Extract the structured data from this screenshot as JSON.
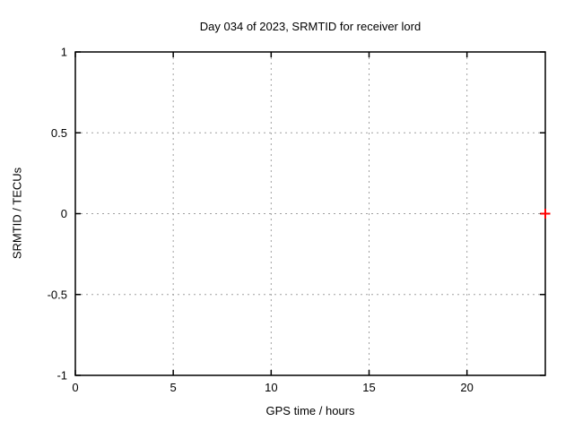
{
  "chart_data": {
    "type": "scatter",
    "title": "Day 034 of 2023, SRMTID for receiver lord",
    "xlabel": "GPS time / hours",
    "ylabel": "SRMTID / TECUs",
    "xlim": [
      0,
      24
    ],
    "ylim": [
      -1,
      1
    ],
    "xticks": [
      0,
      5,
      10,
      15,
      20
    ],
    "yticks": [
      1,
      0.5,
      0,
      -0.5,
      -1
    ],
    "grid": true,
    "grid_style": "dashed",
    "legend": "none",
    "series": [
      {
        "name": "SRMTID",
        "marker": "plus",
        "color": "#ff0000",
        "points": [
          {
            "x": 24,
            "y": 0
          }
        ]
      }
    ]
  },
  "colors": {
    "background": "#ffffff",
    "border": "#000000",
    "grid": "#a0a0a0",
    "tick": "#000000",
    "marker": "#ff0000",
    "text": "#000000"
  }
}
